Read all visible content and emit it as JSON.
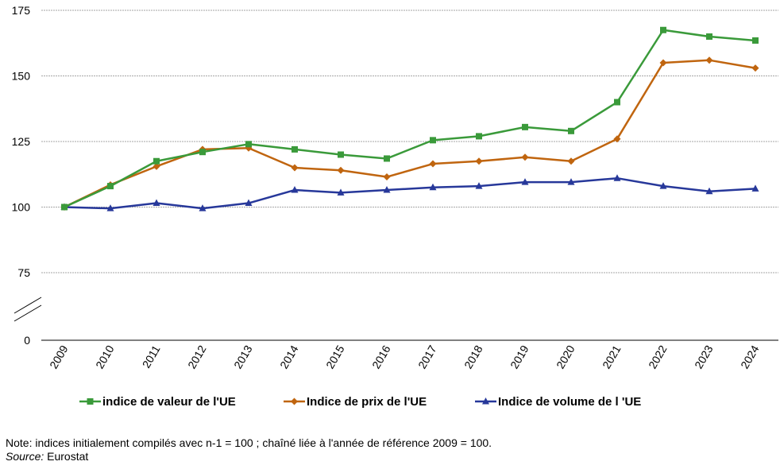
{
  "chart_data": {
    "type": "line",
    "title": "",
    "xlabel": "",
    "ylabel": "",
    "categories": [
      "2009",
      "2010",
      "2011",
      "2012",
      "2013",
      "2014",
      "2015",
      "2016",
      "2017",
      "2018",
      "2019",
      "2020",
      "2021",
      "2022",
      "2023",
      "2024"
    ],
    "y_ticks": [
      0,
      75,
      100,
      125,
      150,
      175
    ],
    "axis_break": "between 0 and 75",
    "ylim_upper": [
      75,
      175
    ],
    "grid": true,
    "legend_position": "bottom",
    "series": [
      {
        "name": "indice de valeur de l'UE",
        "color": "#3a9a3a",
        "marker": "square",
        "values": [
          100,
          108,
          117.5,
          121,
          124,
          122,
          120,
          118.5,
          125.5,
          127,
          130.5,
          129,
          140,
          167.5,
          165,
          163.5
        ]
      },
      {
        "name": "Indice de prix de l'UE",
        "color": "#c0650f",
        "marker": "diamond",
        "values": [
          100,
          108.5,
          115.5,
          122,
          122.5,
          115,
          114,
          111.5,
          116.5,
          117.5,
          119,
          117.5,
          126,
          155,
          156,
          153
        ]
      },
      {
        "name": "Indice de volume de l 'UE",
        "color": "#27389a",
        "marker": "triangle",
        "values": [
          100,
          99.5,
          101.5,
          99.5,
          101.5,
          106.5,
          105.5,
          106.5,
          107.5,
          108,
          109.5,
          109.5,
          111,
          108,
          106,
          107
        ]
      }
    ]
  },
  "footer": {
    "note": "Note: indices initialement compilés avec n-1 = 100 ; chaîné liée à l'année de référence 2009 = 100.",
    "source_label": "Source:",
    "source_value": " Eurostat"
  }
}
